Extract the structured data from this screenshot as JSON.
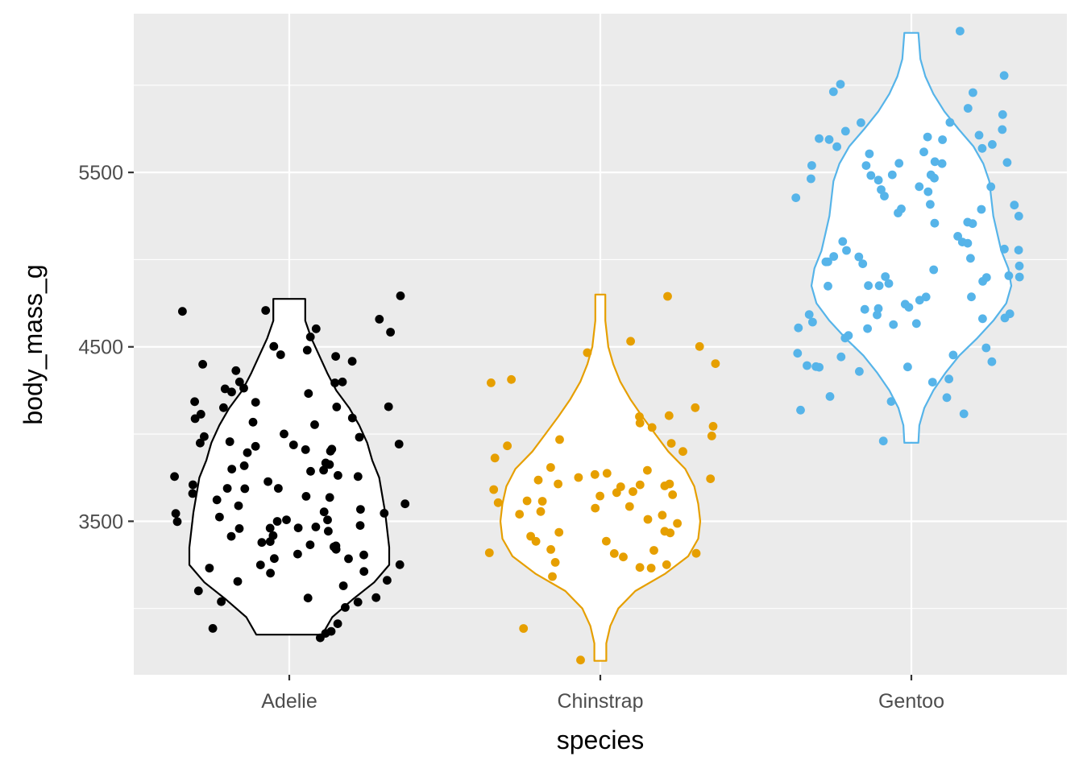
{
  "chart_data": {
    "type": "violin",
    "xlabel": "species",
    "ylabel": "body_mass_g",
    "ylim": [
      2620,
      6410
    ],
    "y_ticks": [
      3500,
      4500,
      5500
    ],
    "categories": [
      "Adelie",
      "Chinstrap",
      "Gentoo"
    ],
    "grid": true,
    "legend": "none",
    "series": [
      {
        "category": "Adelie",
        "color": "#000000",
        "range": [
          2850,
          4775
        ],
        "density_profile": [
          [
            2850,
            0.33
          ],
          [
            2950,
            0.43
          ],
          [
            3050,
            0.63
          ],
          [
            3150,
            0.85
          ],
          [
            3250,
            1.0
          ],
          [
            3350,
            1.0
          ],
          [
            3450,
            0.98
          ],
          [
            3550,
            0.96
          ],
          [
            3650,
            0.93
          ],
          [
            3750,
            0.9
          ],
          [
            3850,
            0.83
          ],
          [
            3950,
            0.78
          ],
          [
            4050,
            0.7
          ],
          [
            4150,
            0.6
          ],
          [
            4250,
            0.47
          ],
          [
            4350,
            0.38
          ],
          [
            4450,
            0.3
          ],
          [
            4550,
            0.22
          ],
          [
            4650,
            0.16
          ],
          [
            4775,
            0.16
          ]
        ],
        "points": [
          2850,
          2850,
          2875,
          2900,
          2925,
          3000,
          3025,
          3050,
          3050,
          3075,
          3100,
          3125,
          3150,
          3175,
          3200,
          3200,
          3225,
          3250,
          3250,
          3275,
          3300,
          3300,
          3325,
          3325,
          3350,
          3350,
          3350,
          3375,
          3400,
          3400,
          3400,
          3425,
          3450,
          3450,
          3475,
          3475,
          3475,
          3500,
          3500,
          3500,
          3525,
          3525,
          3550,
          3550,
          3550,
          3575,
          3600,
          3600,
          3625,
          3650,
          3650,
          3675,
          3700,
          3700,
          3700,
          3700,
          3725,
          3750,
          3775,
          3775,
          3800,
          3800,
          3800,
          3800,
          3825,
          3850,
          3900,
          3900,
          3900,
          3900,
          3925,
          3950,
          3950,
          3950,
          3950,
          3975,
          4000,
          4000,
          4050,
          4050,
          4075,
          4100,
          4100,
          4150,
          4150,
          4150,
          4200,
          4200,
          4250,
          4250,
          4250,
          4275,
          4300,
          4300,
          4300,
          4350,
          4400,
          4400,
          4450,
          4450,
          4475,
          4500,
          4550,
          4600,
          4600,
          4650,
          4700,
          4725,
          4775
        ]
      },
      {
        "category": "Chinstrap",
        "color": "#E69F00",
        "range": [
          2700,
          4800
        ],
        "density_profile": [
          [
            2700,
            0.06
          ],
          [
            2800,
            0.06
          ],
          [
            2900,
            0.1
          ],
          [
            3000,
            0.18
          ],
          [
            3100,
            0.35
          ],
          [
            3200,
            0.65
          ],
          [
            3300,
            0.88
          ],
          [
            3400,
            0.98
          ],
          [
            3500,
            1.0
          ],
          [
            3600,
            0.98
          ],
          [
            3700,
            0.94
          ],
          [
            3800,
            0.85
          ],
          [
            3900,
            0.68
          ],
          [
            4000,
            0.55
          ],
          [
            4100,
            0.42
          ],
          [
            4200,
            0.3
          ],
          [
            4300,
            0.2
          ],
          [
            4400,
            0.13
          ],
          [
            4500,
            0.08
          ],
          [
            4650,
            0.05
          ],
          [
            4800,
            0.05
          ]
        ],
        "points": [
          2700,
          2900,
          3200,
          3250,
          3250,
          3250,
          3275,
          3300,
          3300,
          3325,
          3325,
          3350,
          3350,
          3400,
          3400,
          3400,
          3425,
          3450,
          3450,
          3500,
          3500,
          3525,
          3525,
          3550,
          3575,
          3600,
          3600,
          3600,
          3625,
          3650,
          3650,
          3650,
          3675,
          3700,
          3700,
          3700,
          3700,
          3725,
          3725,
          3725,
          3750,
          3750,
          3775,
          3775,
          3800,
          3800,
          3850,
          3900,
          3950,
          3950,
          3950,
          4000,
          4050,
          4050,
          4050,
          4100,
          4100,
          4150,
          4300,
          4300,
          4400,
          4450,
          4500,
          4550,
          4800
        ]
      },
      {
        "category": "Gentoo",
        "color": "#56B4E9",
        "range": [
          3950,
          6300
        ],
        "density_profile": [
          [
            3950,
            0.07
          ],
          [
            4050,
            0.08
          ],
          [
            4150,
            0.13
          ],
          [
            4250,
            0.22
          ],
          [
            4350,
            0.34
          ],
          [
            4450,
            0.48
          ],
          [
            4550,
            0.66
          ],
          [
            4650,
            0.82
          ],
          [
            4750,
            0.95
          ],
          [
            4850,
            1.0
          ],
          [
            4950,
            0.97
          ],
          [
            5050,
            0.9
          ],
          [
            5150,
            0.86
          ],
          [
            5250,
            0.82
          ],
          [
            5350,
            0.8
          ],
          [
            5450,
            0.78
          ],
          [
            5550,
            0.72
          ],
          [
            5650,
            0.62
          ],
          [
            5750,
            0.47
          ],
          [
            5850,
            0.33
          ],
          [
            5950,
            0.22
          ],
          [
            6050,
            0.14
          ],
          [
            6150,
            0.09
          ],
          [
            6300,
            0.07
          ]
        ],
        "points": [
          3950,
          4100,
          4150,
          4200,
          4200,
          4200,
          4300,
          4300,
          4350,
          4375,
          4375,
          4400,
          4400,
          4400,
          4450,
          4450,
          4450,
          4500,
          4550,
          4575,
          4600,
          4600,
          4625,
          4625,
          4650,
          4650,
          4650,
          4675,
          4700,
          4700,
          4700,
          4725,
          4725,
          4750,
          4750,
          4800,
          4800,
          4850,
          4850,
          4850,
          4875,
          4875,
          4900,
          4900,
          4900,
          4925,
          4950,
          4950,
          4975,
          5000,
          5000,
          5000,
          5000,
          5000,
          5050,
          5050,
          5050,
          5100,
          5100,
          5100,
          5150,
          5200,
          5200,
          5200,
          5250,
          5250,
          5300,
          5300,
          5300,
          5300,
          5350,
          5350,
          5400,
          5400,
          5400,
          5400,
          5450,
          5450,
          5450,
          5500,
          5500,
          5500,
          5550,
          5550,
          5550,
          5550,
          5550,
          5550,
          5600,
          5600,
          5650,
          5650,
          5650,
          5700,
          5700,
          5700,
          5700,
          5700,
          5750,
          5750,
          5800,
          5800,
          5850,
          5850,
          5950,
          5950,
          6000,
          6050,
          6300
        ]
      }
    ]
  }
}
